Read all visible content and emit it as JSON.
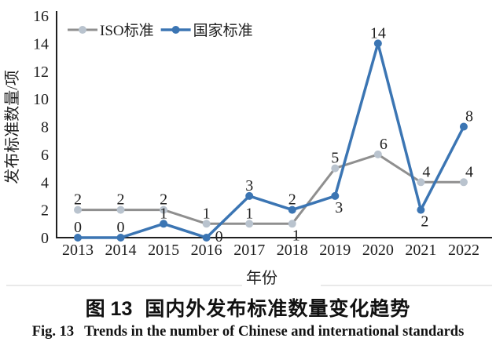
{
  "chart_data": {
    "type": "line",
    "title": "",
    "xlabel": "年份",
    "ylabel": "发布标准数量/项",
    "x": [
      "2013",
      "2014",
      "2015",
      "2016",
      "2017",
      "2018",
      "2019",
      "2020",
      "2021",
      "2022"
    ],
    "ylim": [
      0,
      16
    ],
    "ytick_step": 2,
    "grid": false,
    "legend_position": "top-left-inside",
    "axis_color": "#1f1f1f",
    "series": [
      {
        "name": "ISO标准",
        "color": "#8F8F8F",
        "marker_color": "#B9C3CE",
        "values": [
          2,
          2,
          2,
          1,
          1,
          1,
          5,
          6,
          4,
          4
        ],
        "label_positions": [
          "above",
          "above",
          "above",
          "above",
          "above",
          "below",
          "above",
          "above-right",
          "above-right",
          "above-right"
        ]
      },
      {
        "name": "国家标准",
        "color": "#3B75B3",
        "marker_color": "#3B75B3",
        "values": [
          0,
          0,
          1,
          0,
          3,
          2,
          3,
          14,
          2,
          8
        ],
        "label_positions": [
          "above",
          "above",
          "above",
          "right",
          "above",
          "above",
          "below",
          "above",
          "below",
          "above-right"
        ]
      }
    ]
  },
  "captions": {
    "zh_label": "图 13",
    "zh_text": "国内外发布标准数量变化趋势",
    "en_label": "Fig. 13",
    "en_text": "Trends in the number of Chinese and international standards"
  }
}
